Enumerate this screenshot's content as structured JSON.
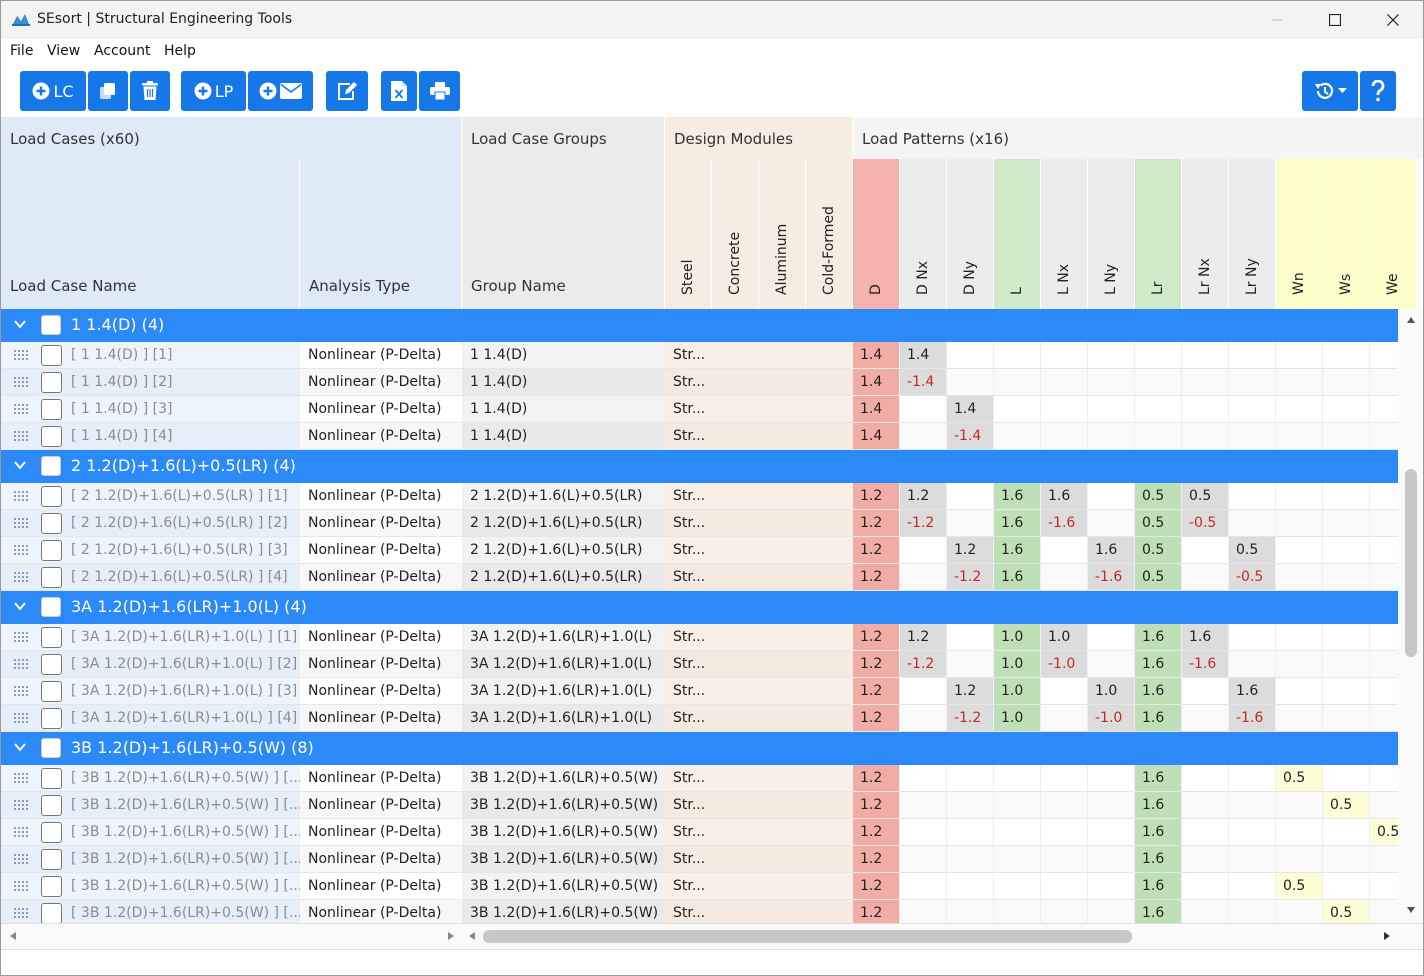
{
  "window": {
    "title": "SEsort | Structural Engineering Tools"
  },
  "menu": [
    "File",
    "View",
    "Account",
    "Help"
  ],
  "toolbar": {
    "add_lc": "LC",
    "add_lp": "LP"
  },
  "headers": {
    "load_cases": "Load Cases (x60)",
    "load_case_groups": "Load Case Groups",
    "design_modules": "Design Modules",
    "load_patterns": "Load Patterns (x16)",
    "load_case_name": "Load Case Name",
    "analysis_type": "Analysis Type",
    "group_name": "Group Name",
    "modules": [
      "Steel",
      "Concrete",
      "Aluminum",
      "Cold-Formed"
    ],
    "patterns": [
      "D",
      "D Nx",
      "D Ny",
      "L",
      "L Nx",
      "L Ny",
      "Lr",
      "Lr Nx",
      "Lr Ny",
      "Wn",
      "Ws",
      "We"
    ]
  },
  "pattern_colors": [
    "red",
    "grey",
    "grey",
    "green",
    "grey",
    "grey",
    "green",
    "grey",
    "grey",
    "yellow",
    "yellow",
    "yellow"
  ],
  "groups": [
    {
      "label": "1 1.4(D) (4)",
      "rows": [
        {
          "name": "[ 1 1.4(D) ] [1]",
          "analysis": "Nonlinear (P-Delta)",
          "group": "1 1.4(D)",
          "module": "Str...",
          "values": [
            "1.4",
            "1.4",
            "",
            "",
            "",
            "",
            "",
            "",
            "",
            "",
            "",
            ""
          ]
        },
        {
          "name": "[ 1 1.4(D) ] [2]",
          "analysis": "Nonlinear (P-Delta)",
          "group": "1 1.4(D)",
          "module": "Str...",
          "values": [
            "1.4",
            "-1.4",
            "",
            "",
            "",
            "",
            "",
            "",
            "",
            "",
            "",
            ""
          ]
        },
        {
          "name": "[ 1 1.4(D) ] [3]",
          "analysis": "Nonlinear (P-Delta)",
          "group": "1 1.4(D)",
          "module": "Str...",
          "values": [
            "1.4",
            "",
            "1.4",
            "",
            "",
            "",
            "",
            "",
            "",
            "",
            "",
            ""
          ]
        },
        {
          "name": "[ 1 1.4(D) ] [4]",
          "analysis": "Nonlinear (P-Delta)",
          "group": "1 1.4(D)",
          "module": "Str...",
          "values": [
            "1.4",
            "",
            "-1.4",
            "",
            "",
            "",
            "",
            "",
            "",
            "",
            "",
            ""
          ]
        }
      ]
    },
    {
      "label": "2 1.2(D)+1.6(L)+0.5(LR) (4)",
      "rows": [
        {
          "name": "[ 2 1.2(D)+1.6(L)+0.5(LR) ] [1]",
          "analysis": "Nonlinear (P-Delta)",
          "group": "2 1.2(D)+1.6(L)+0.5(LR)",
          "module": "Str...",
          "values": [
            "1.2",
            "1.2",
            "",
            "1.6",
            "1.6",
            "",
            "0.5",
            "0.5",
            "",
            "",
            "",
            ""
          ]
        },
        {
          "name": "[ 2 1.2(D)+1.6(L)+0.5(LR) ] [2]",
          "analysis": "Nonlinear (P-Delta)",
          "group": "2 1.2(D)+1.6(L)+0.5(LR)",
          "module": "Str...",
          "values": [
            "1.2",
            "-1.2",
            "",
            "1.6",
            "-1.6",
            "",
            "0.5",
            "-0.5",
            "",
            "",
            "",
            ""
          ]
        },
        {
          "name": "[ 2 1.2(D)+1.6(L)+0.5(LR) ] [3]",
          "analysis": "Nonlinear (P-Delta)",
          "group": "2 1.2(D)+1.6(L)+0.5(LR)",
          "module": "Str...",
          "values": [
            "1.2",
            "",
            "1.2",
            "1.6",
            "",
            "1.6",
            "0.5",
            "",
            "0.5",
            "",
            "",
            ""
          ]
        },
        {
          "name": "[ 2 1.2(D)+1.6(L)+0.5(LR) ] [4]",
          "analysis": "Nonlinear (P-Delta)",
          "group": "2 1.2(D)+1.6(L)+0.5(LR)",
          "module": "Str...",
          "values": [
            "1.2",
            "",
            "-1.2",
            "1.6",
            "",
            "-1.6",
            "0.5",
            "",
            "-0.5",
            "",
            "",
            ""
          ]
        }
      ]
    },
    {
      "label": "3A 1.2(D)+1.6(LR)+1.0(L) (4)",
      "rows": [
        {
          "name": "[ 3A 1.2(D)+1.6(LR)+1.0(L) ] [1]",
          "analysis": "Nonlinear (P-Delta)",
          "group": "3A 1.2(D)+1.6(LR)+1.0(L)",
          "module": "Str...",
          "values": [
            "1.2",
            "1.2",
            "",
            "1.0",
            "1.0",
            "",
            "1.6",
            "1.6",
            "",
            "",
            "",
            ""
          ]
        },
        {
          "name": "[ 3A 1.2(D)+1.6(LR)+1.0(L) ] [2]",
          "analysis": "Nonlinear (P-Delta)",
          "group": "3A 1.2(D)+1.6(LR)+1.0(L)",
          "module": "Str...",
          "values": [
            "1.2",
            "-1.2",
            "",
            "1.0",
            "-1.0",
            "",
            "1.6",
            "-1.6",
            "",
            "",
            "",
            ""
          ]
        },
        {
          "name": "[ 3A 1.2(D)+1.6(LR)+1.0(L) ] [3]",
          "analysis": "Nonlinear (P-Delta)",
          "group": "3A 1.2(D)+1.6(LR)+1.0(L)",
          "module": "Str...",
          "values": [
            "1.2",
            "",
            "1.2",
            "1.0",
            "",
            "1.0",
            "1.6",
            "",
            "1.6",
            "",
            "",
            ""
          ]
        },
        {
          "name": "[ 3A 1.2(D)+1.6(LR)+1.0(L) ] [4]",
          "analysis": "Nonlinear (P-Delta)",
          "group": "3A 1.2(D)+1.6(LR)+1.0(L)",
          "module": "Str...",
          "values": [
            "1.2",
            "",
            "-1.2",
            "1.0",
            "",
            "-1.0",
            "1.6",
            "",
            "-1.6",
            "",
            "",
            ""
          ]
        }
      ]
    },
    {
      "label": "3B 1.2(D)+1.6(LR)+0.5(W) (8)",
      "rows": [
        {
          "name": "[ 3B 1.2(D)+1.6(LR)+0.5(W) ] [...",
          "analysis": "Nonlinear (P-Delta)",
          "group": "3B 1.2(D)+1.6(LR)+0.5(W)",
          "module": "Str...",
          "values": [
            "1.2",
            "",
            "",
            "",
            "",
            "",
            "1.6",
            "",
            "",
            "0.5",
            "",
            ""
          ]
        },
        {
          "name": "[ 3B 1.2(D)+1.6(LR)+0.5(W) ] [...",
          "analysis": "Nonlinear (P-Delta)",
          "group": "3B 1.2(D)+1.6(LR)+0.5(W)",
          "module": "Str...",
          "values": [
            "1.2",
            "",
            "",
            "",
            "",
            "",
            "1.6",
            "",
            "",
            "",
            "0.5",
            ""
          ]
        },
        {
          "name": "[ 3B 1.2(D)+1.6(LR)+0.5(W) ] [...",
          "analysis": "Nonlinear (P-Delta)",
          "group": "3B 1.2(D)+1.6(LR)+0.5(W)",
          "module": "Str...",
          "values": [
            "1.2",
            "",
            "",
            "",
            "",
            "",
            "1.6",
            "",
            "",
            "",
            "",
            "0.5"
          ]
        },
        {
          "name": "[ 3B 1.2(D)+1.6(LR)+0.5(W) ] [...",
          "analysis": "Nonlinear (P-Delta)",
          "group": "3B 1.2(D)+1.6(LR)+0.5(W)",
          "module": "Str...",
          "values": [
            "1.2",
            "",
            "",
            "",
            "",
            "",
            "1.6",
            "",
            "",
            "",
            "",
            ""
          ]
        },
        {
          "name": "[ 3B 1.2(D)+1.6(LR)+0.5(W) ] [...",
          "analysis": "Nonlinear (P-Delta)",
          "group": "3B 1.2(D)+1.6(LR)+0.5(W)",
          "module": "Str...",
          "values": [
            "1.2",
            "",
            "",
            "",
            "",
            "",
            "1.6",
            "",
            "",
            "0.5",
            "",
            ""
          ]
        },
        {
          "name": "[ 3B 1.2(D)+1.6(LR)+0.5(W) ] [...",
          "analysis": "Nonlinear (P-Delta)",
          "group": "3B 1.2(D)+1.6(LR)+0.5(W)",
          "module": "Str...",
          "values": [
            "1.2",
            "",
            "",
            "",
            "",
            "",
            "1.6",
            "",
            "",
            "",
            "0.5",
            ""
          ]
        }
      ]
    }
  ]
}
